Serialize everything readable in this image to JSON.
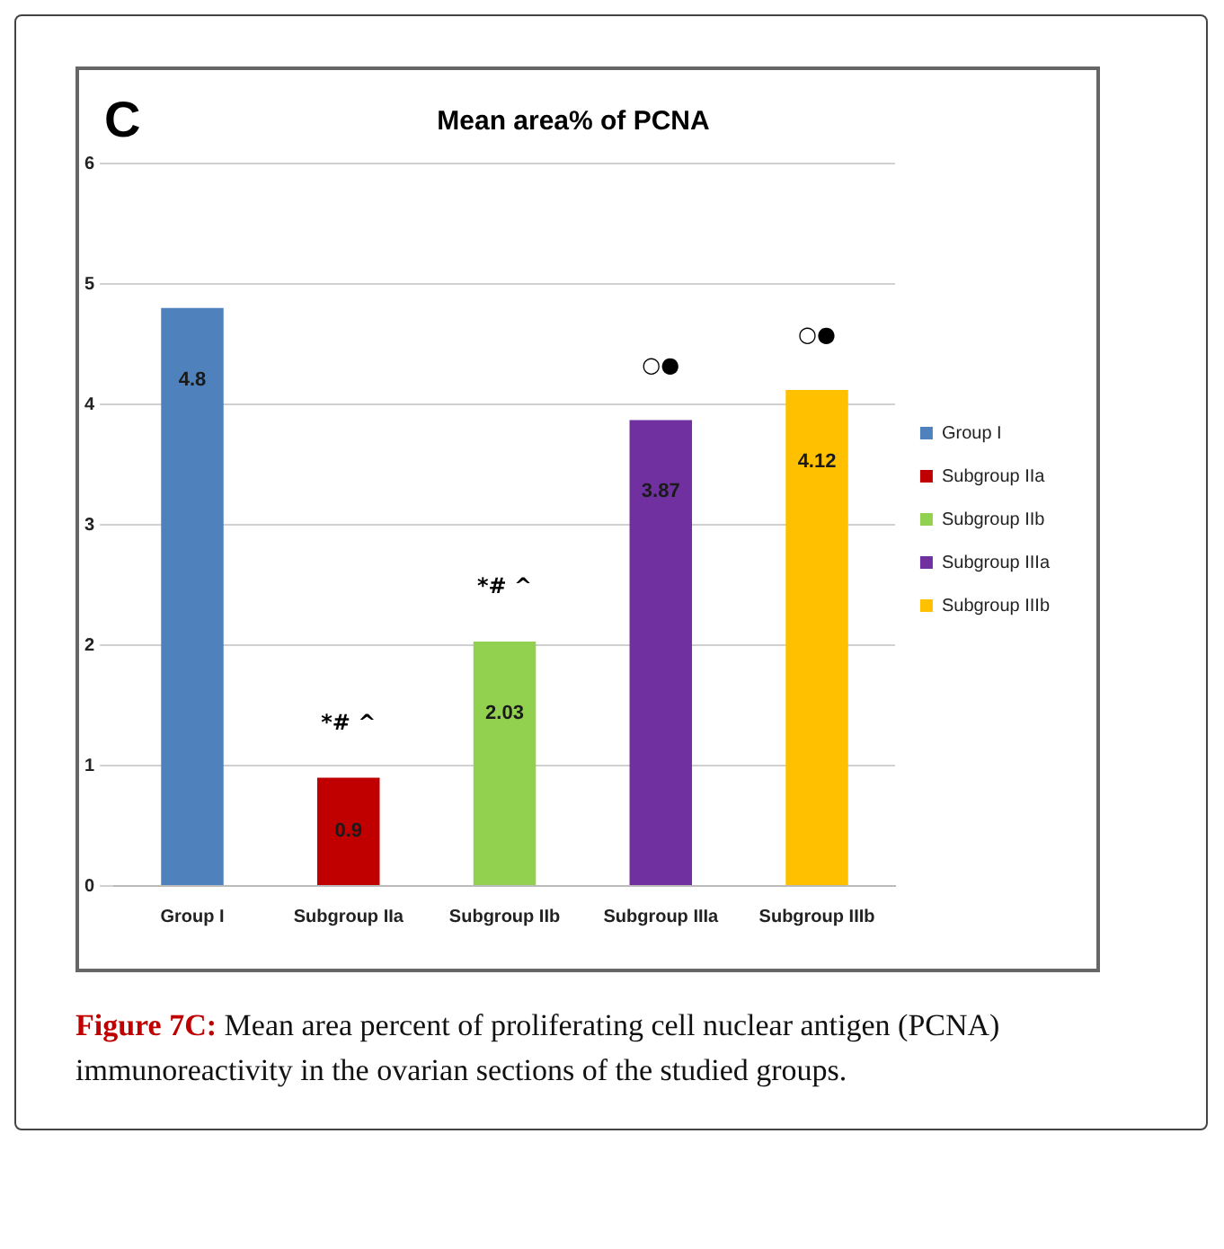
{
  "chart_data": {
    "type": "bar",
    "title": "Mean area% of PCNA",
    "categories": [
      "Group I",
      "Subgroup IIa",
      "Subgroup IIb",
      "Subgroup IIIa",
      "Subgroup IIIb"
    ],
    "series": [
      {
        "name": "Group I",
        "color": "#4f81bd",
        "values": [
          4.8,
          null,
          null,
          null,
          null
        ]
      },
      {
        "name": "Subgroup IIa",
        "color": "#c00000",
        "values": [
          null,
          0.9,
          null,
          null,
          null
        ]
      },
      {
        "name": "Subgroup IIb",
        "color": "#92d050",
        "values": [
          null,
          null,
          2.03,
          null,
          null
        ]
      },
      {
        "name": "Subgroup IIIa",
        "color": "#7030a0",
        "values": [
          null,
          null,
          null,
          3.87,
          null
        ]
      },
      {
        "name": "Subgroup IIIb",
        "color": "#ffc000",
        "values": [
          null,
          null,
          null,
          null,
          4.12
        ]
      }
    ],
    "ylim": [
      0,
      6
    ],
    "yticks": [
      0,
      1,
      2,
      3,
      4,
      5,
      6
    ],
    "grid": "y",
    "legend": "right",
    "data_labels": true,
    "annotations": [
      "C",
      {
        "text": "*# ^",
        "x": "Subgroup IIa",
        "y": 0.9
      },
      {
        "text": "*# ^",
        "x": "Subgroup IIb",
        "y": 2.03
      },
      {
        "text": "○●",
        "x": "Subgroup IIIa",
        "y": 3.87
      },
      {
        "text": "○●",
        "x": "Subgroup IIIb",
        "y": 4.12
      },
      "Figure 7C: Mean area percent of proliferating cell nuclear antigen (PCNA) immunoreactivity in the ovarian sections of the studied groups."
    ]
  }
}
